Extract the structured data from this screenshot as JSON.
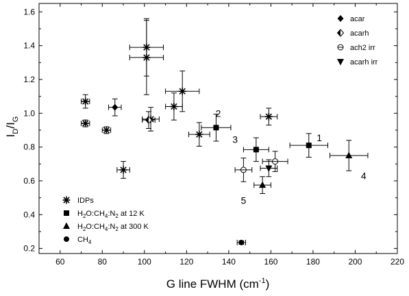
{
  "chart_data": {
    "type": "scatter",
    "xlabel": "G line FWHM (cm⁻¹)",
    "xlabel_parts": {
      "main": "G line FWHM (cm",
      "sup": "-1",
      "end": ")"
    },
    "ylabel_parts": {
      "main": "I",
      "sub1": "D",
      "mid": "/I",
      "sub2": "G"
    },
    "xlim": [
      50,
      220
    ],
    "ylim": [
      0.17,
      1.65
    ],
    "xticks": [
      60,
      80,
      100,
      120,
      140,
      160,
      180,
      200,
      220
    ],
    "yticks": [
      0.2,
      0.4,
      0.6,
      0.8,
      1.0,
      1.2,
      1.4,
      1.6
    ],
    "xtick_labels": [
      "60",
      "80",
      "100",
      "120",
      "140",
      "160",
      "180",
      "200",
      "220"
    ],
    "ytick_labels": [
      "0.2",
      "0.4",
      "0.6",
      "0.8",
      "1.0",
      "1.2",
      "1.4",
      "1.6"
    ],
    "grid": false,
    "legend_top_right": [
      {
        "label": "acar",
        "marker": "diamond-filled"
      },
      {
        "label": "acarh",
        "marker": "diamond-half"
      },
      {
        "label": "ach2 irr",
        "marker": "circle-bar"
      },
      {
        "label": "acarh irr",
        "marker": "triangle-down"
      }
    ],
    "legend_bottom_left": [
      {
        "label_parts": [
          "IDPs"
        ],
        "marker": "star"
      },
      {
        "label_parts": [
          "H",
          "2",
          "O:CH",
          "4",
          ":N",
          "2",
          " at 12 K"
        ],
        "marker": "square"
      },
      {
        "label_parts": [
          "H",
          "2",
          "O:CH",
          "4",
          ":N",
          "2",
          " at 300 K"
        ],
        "marker": "triangle-up"
      },
      {
        "label_parts": [
          "CH",
          "4"
        ],
        "marker": "circle-filled"
      }
    ],
    "series": [
      {
        "name": "IDPs",
        "marker": "star",
        "points": [
          {
            "x": 72,
            "y": 1.07,
            "xerr": 2,
            "yerr": 0.04
          },
          {
            "x": 72,
            "y": 0.94,
            "xerr": 2,
            "yerr": 0.02
          },
          {
            "x": 82,
            "y": 0.9,
            "xerr": 2,
            "yerr": 0.02
          },
          {
            "x": 90,
            "y": 0.665,
            "xerr": 3,
            "yerr": 0.05
          },
          {
            "x": 101,
            "y": 1.39,
            "xerr": 8,
            "yerr": 0.17
          },
          {
            "x": 101,
            "y": 1.33,
            "xerr": 8,
            "yerr": 0.22
          },
          {
            "x": 103,
            "y": 0.965,
            "xerr": 4,
            "yerr": 0.07
          },
          {
            "x": 114,
            "y": 1.04,
            "xerr": 4,
            "yerr": 0.08
          },
          {
            "x": 118,
            "y": 1.13,
            "xerr": 8,
            "yerr": 0.12
          },
          {
            "x": 126,
            "y": 0.875,
            "xerr": 5,
            "yerr": 0.07
          },
          {
            "x": 159,
            "y": 0.98,
            "xerr": 4,
            "yerr": 0.05
          }
        ]
      },
      {
        "name": "acar",
        "marker": "diamond-filled",
        "points": [
          {
            "x": 86,
            "y": 1.035,
            "xerr": 3,
            "yerr": 0.05
          }
        ]
      },
      {
        "name": "acarh",
        "marker": "diamond-half",
        "points": [
          {
            "x": 102,
            "y": 0.96,
            "xerr": 3,
            "yerr": 0.05
          }
        ]
      },
      {
        "name": "ach2 irr",
        "marker": "circle-bar",
        "points": [
          {
            "x": 147,
            "y": 0.665,
            "xerr": 4,
            "yerr": 0.07
          },
          {
            "x": 162,
            "y": 0.715,
            "xerr": 6,
            "yerr": 0.06
          }
        ]
      },
      {
        "name": "acarh irr",
        "marker": "triangle-down",
        "points": [
          {
            "x": 159,
            "y": 0.675,
            "xerr": 4,
            "yerr": 0.05
          }
        ]
      },
      {
        "name": "H2O:CH4:N2 at 12 K",
        "marker": "square",
        "points": [
          {
            "x": 134,
            "y": 0.915,
            "xerr": 7,
            "yerr": 0.08
          },
          {
            "x": 153,
            "y": 0.785,
            "xerr": 6,
            "yerr": 0.07
          },
          {
            "x": 178,
            "y": 0.81,
            "xerr": 9,
            "yerr": 0.07
          }
        ]
      },
      {
        "name": "H2O:CH4:N2 at 300 K",
        "marker": "triangle-up",
        "points": [
          {
            "x": 156,
            "y": 0.575,
            "xerr": 4,
            "yerr": 0.05
          },
          {
            "x": 197,
            "y": 0.75,
            "xerr": 9,
            "yerr": 0.09
          }
        ]
      },
      {
        "name": "CH4",
        "marker": "circle-filled",
        "points": [
          {
            "x": 146,
            "y": 0.235,
            "xerr": 2,
            "yerr": 0.01
          }
        ]
      }
    ],
    "annotations": [
      {
        "text": "1",
        "x": 183,
        "y": 0.855
      },
      {
        "text": "2",
        "x": 135,
        "y": 1.0
      },
      {
        "text": "3",
        "x": 143,
        "y": 0.845
      },
      {
        "text": "4",
        "x": 204,
        "y": 0.63
      },
      {
        "text": "5",
        "x": 147,
        "y": 0.485
      }
    ]
  }
}
